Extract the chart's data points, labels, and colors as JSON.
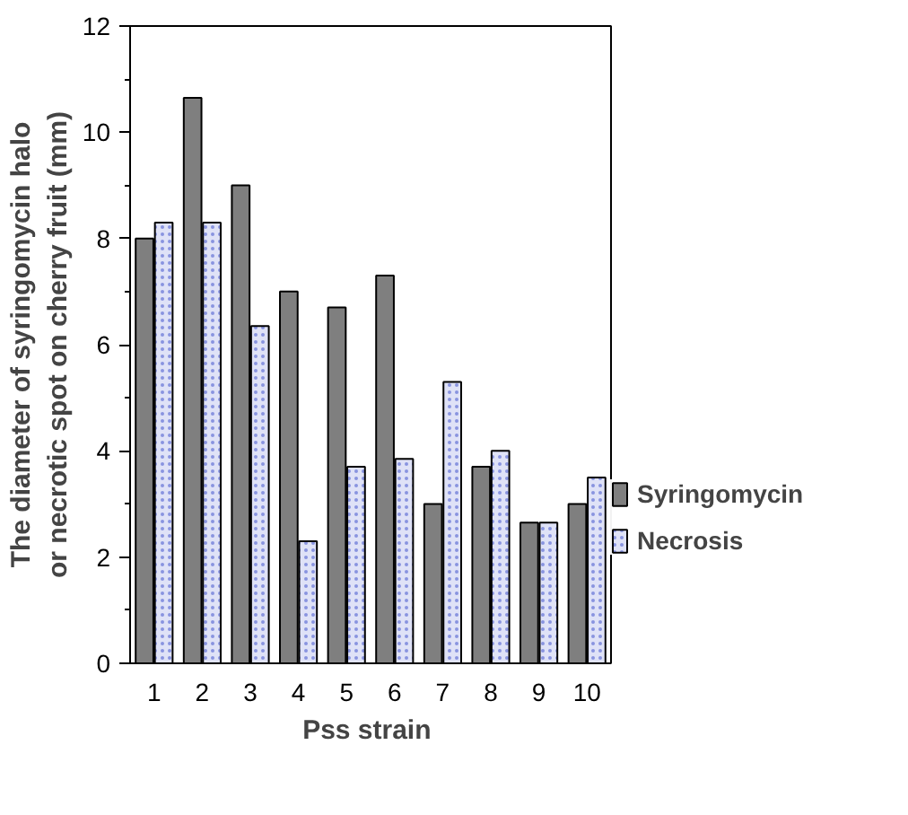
{
  "chart_data": {
    "type": "bar",
    "xlabel": "Pss  strain",
    "ylabel": "The diameter of syringomycin halo\nor necrotic spot on cherry fruit (mm)",
    "categories": [
      "1",
      "2",
      "3",
      "4",
      "5",
      "6",
      "7",
      "8",
      "9",
      "10"
    ],
    "series": [
      {
        "name": "Syringomycin",
        "color": "#7f7f7f",
        "values": [
          8.0,
          10.65,
          9.0,
          7.0,
          6.7,
          7.3,
          3.0,
          3.7,
          2.65,
          3.0
        ]
      },
      {
        "name": "Necrosis",
        "color": "#dfe2f7",
        "values": [
          8.3,
          8.3,
          6.35,
          2.3,
          3.7,
          3.85,
          5.3,
          4.0,
          2.65,
          3.5
        ]
      }
    ],
    "ylim": [
      0,
      12
    ],
    "yticks": [
      0,
      2,
      4,
      6,
      8,
      10,
      12
    ],
    "grid": false,
    "legend": "right"
  }
}
